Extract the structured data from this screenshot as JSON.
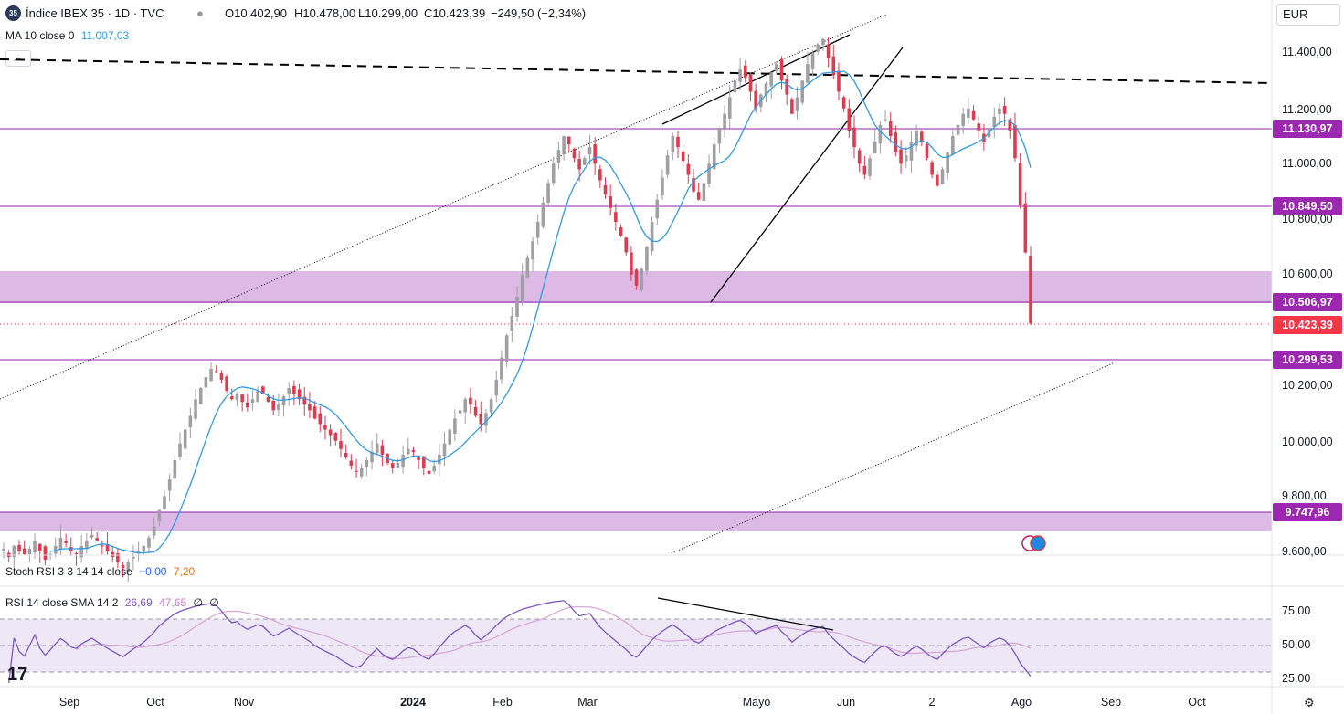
{
  "header": {
    "symbol_badge": "35",
    "title": "Índice IBEX 35 · 1D · TVC",
    "open": "O10.402,90",
    "high": "H10.478,00",
    "low": "L10.299,00",
    "close": "C10.423,39",
    "change": "−249,50 (−2,34%)",
    "ma_label": "MA 10 close 0",
    "ma_value": "11.007,03"
  },
  "currency": "EUR",
  "price_axis": [
    "11.400,00",
    "11.200,00",
    "11.000,00",
    "10.800,00",
    "10.600,00",
    "10.200,00",
    "10.000,00",
    "9.800,00",
    "9.600,00"
  ],
  "price_tags": [
    {
      "label": "11.130,97",
      "color": "#9c27b0"
    },
    {
      "label": "10.849,50",
      "color": "#9c27b0"
    },
    {
      "label": "10.506,97",
      "color": "#9c27b0"
    },
    {
      "label": "10.423,39",
      "color": "#f23645"
    },
    {
      "label": "10.299,53",
      "color": "#9c27b0"
    },
    {
      "label": "9.747,96",
      "color": "#9c27b0"
    }
  ],
  "stoch_rsi": {
    "label": "Stoch RSI 3 3 14 14 close",
    "k": "−0,00",
    "d": "7,20"
  },
  "rsi": {
    "label": "RSI 14 close SMA 14 2",
    "value": "26,69",
    "sma": "47,65",
    "extra1": "∅",
    "extra2": "∅",
    "axis": [
      "75,00",
      "50,00",
      "25,00"
    ]
  },
  "time_axis": [
    "Sep",
    "Oct",
    "Nov",
    "2024",
    "Feb",
    "Mar",
    "Mayo",
    "Jun",
    "2",
    "Ago",
    "Sep",
    "Oct"
  ],
  "colors": {
    "up": "#a0a0a4",
    "down": "#e03a4e",
    "ma": "#2f9be8",
    "level": "#8e24aa",
    "zone": "#ddb9e6",
    "rsi": "#7e57c2"
  },
  "chart_data": {
    "type": "candlestick",
    "title": "Índice IBEX 35 · 1D · TVC",
    "y_range": [
      9560,
      11500
    ],
    "levels": [
      11130.97,
      10849.5,
      10506.97,
      10299.53,
      9747.96
    ],
    "zones": [
      [
        10506.97,
        10610
      ],
      [
        9680,
        9747.96
      ]
    ],
    "last_price": 10423.39,
    "note_series": "approximate daily closes",
    "closes": [
      9610,
      9580,
      9620,
      9600,
      9590,
      9610,
      9640,
      9600,
      9570,
      9590,
      9620,
      9650,
      9630,
      9600,
      9590,
      9620,
      9640,
      9660,
      9640,
      9620,
      9600,
      9580,
      9560,
      9540,
      9560,
      9580,
      9600,
      9620,
      9650,
      9690,
      9750,
      9800,
      9860,
      9930,
      9990,
      10040,
      10090,
      10150,
      10190,
      10230,
      10260,
      10250,
      10220,
      10180,
      10150,
      10170,
      10140,
      10120,
      10150,
      10180,
      10170,
      10140,
      10110,
      10130,
      10160,
      10190,
      10170,
      10150,
      10130,
      10110,
      10080,
      10060,
      10040,
      10020,
      10000,
      9970,
      9940,
      9910,
      9890,
      9900,
      9930,
      9960,
      9990,
      9950,
      9920,
      9900,
      9920,
      9950,
      9970,
      9960,
      9930,
      9900,
      9880,
      9910,
      9950,
      9990,
      10040,
      10080,
      10110,
      10150,
      10130,
      10090,
      10060,
      10100,
      10150,
      10220,
      10300,
      10380,
      10450,
      10520,
      10600,
      10660,
      10720,
      10790,
      10860,
      10930,
      11000,
      11050,
      11100,
      11070,
      11020,
      10980,
      11020,
      11060,
      11000,
      10940,
      10890,
      10840,
      10790,
      10740,
      10680,
      10600,
      10560,
      10620,
      10700,
      10790,
      10870,
      10950,
      11030,
      11100,
      11060,
      11010,
      10960,
      10900,
      10870,
      10930,
      11000,
      11070,
      11130,
      11180,
      11240,
      11300,
      11340,
      11310,
      11260,
      11200,
      11250,
      11290,
      11330,
      11360,
      11300,
      11250,
      11180,
      11240,
      11300,
      11360,
      11400,
      11430,
      11450,
      11380,
      11320,
      11260,
      11200,
      11120,
      11060,
      11000,
      10960,
      11020,
      11080,
      11140,
      11160,
      11100,
      11040,
      11000,
      11030,
      11080,
      11120,
      11080,
      11020,
      10960,
      10920,
      10980,
      11040,
      11100,
      11140,
      11180,
      11200,
      11160,
      11120,
      11080,
      11130,
      11170,
      11200,
      11180,
      11120,
      11020,
      10850,
      10680,
      10423.39
    ]
  }
}
